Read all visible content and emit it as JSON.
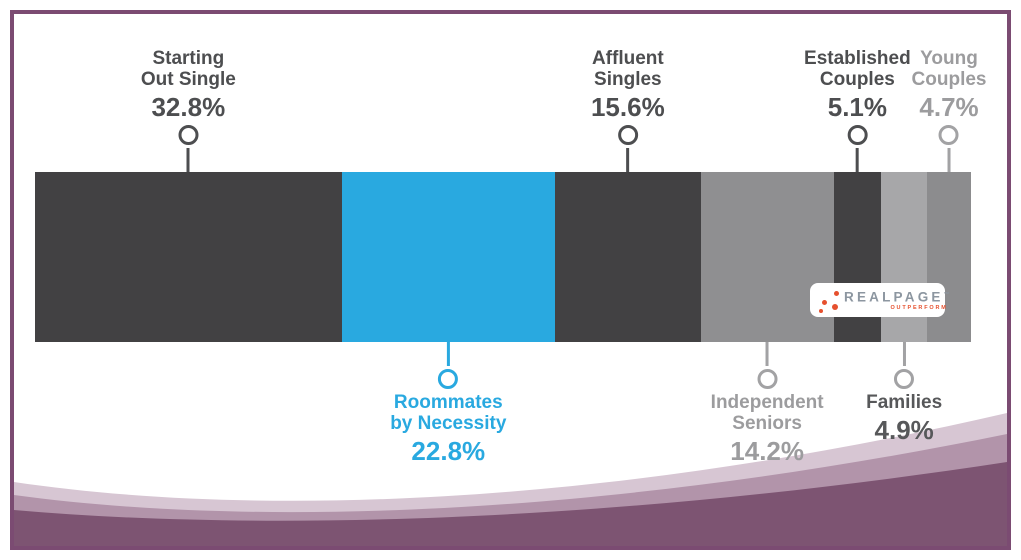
{
  "logo": {
    "text": "REALPAGE",
    "trademark": "™",
    "tagline": "OUTPERFORM"
  },
  "frame_color": "#7b4b72",
  "wave_colors": {
    "light": "#d7c6d3",
    "medium": "#b294aa",
    "dark": "#7d5472"
  },
  "chart_data": {
    "type": "bar",
    "subtype": "horizontal-stacked-percentage",
    "title": "",
    "unit": "%",
    "legend_position": "callouts",
    "categories": [
      "Starting Out Single",
      "Roommates by Necessity",
      "Affluent Singles",
      "Independent Seniors",
      "Established Couples",
      "Families",
      "Young Couples"
    ],
    "values": [
      32.8,
      22.8,
      15.6,
      14.2,
      5.1,
      4.9,
      4.7
    ],
    "segments": [
      {
        "id": "starting-out-single",
        "lines": [
          "Starting",
          "Out Single"
        ],
        "value_label": "32.8%",
        "pct": 32.8,
        "color": "#424143",
        "label_side": "top",
        "text_color": "#4d4e50",
        "marker_color": "#4d4e50"
      },
      {
        "id": "roommates-by-necessity",
        "lines": [
          "Roommates",
          "by Necessity"
        ],
        "value_label": "22.8%",
        "pct": 22.8,
        "color": "#29a9e0",
        "label_side": "bottom",
        "text_color": "#29a9e0",
        "marker_color": "#29a9e0"
      },
      {
        "id": "affluent-singles",
        "lines": [
          "Affluent",
          "Singles"
        ],
        "value_label": "15.6%",
        "pct": 15.6,
        "color": "#424143",
        "label_side": "top",
        "text_color": "#4d4e50",
        "marker_color": "#4d4e50"
      },
      {
        "id": "independent-seniors",
        "lines": [
          "Independent",
          "Seniors"
        ],
        "value_label": "14.2%",
        "pct": 14.2,
        "color": "#8f8f91",
        "label_side": "bottom",
        "text_color": "#9c9c9e",
        "marker_color": "#a2a2a4"
      },
      {
        "id": "established-couples",
        "lines": [
          "Established",
          "Couples"
        ],
        "value_label": "5.1%",
        "pct": 5.1,
        "color": "#424143",
        "label_side": "top",
        "text_color": "#4d4e50",
        "marker_color": "#4d4e50"
      },
      {
        "id": "families",
        "lines": [
          "Families"
        ],
        "value_label": "4.9%",
        "pct": 4.9,
        "color": "#a7a7a9",
        "label_side": "bottom",
        "text_color": "#57585a",
        "marker_color": "#a2a2a4"
      },
      {
        "id": "young-couples",
        "lines": [
          "Young",
          "Couples"
        ],
        "value_label": "4.7%",
        "pct": 4.7,
        "color": "#8c8c8e",
        "label_side": "top",
        "text_color": "#9c9c9e",
        "marker_color": "#a2a2a4"
      }
    ]
  }
}
